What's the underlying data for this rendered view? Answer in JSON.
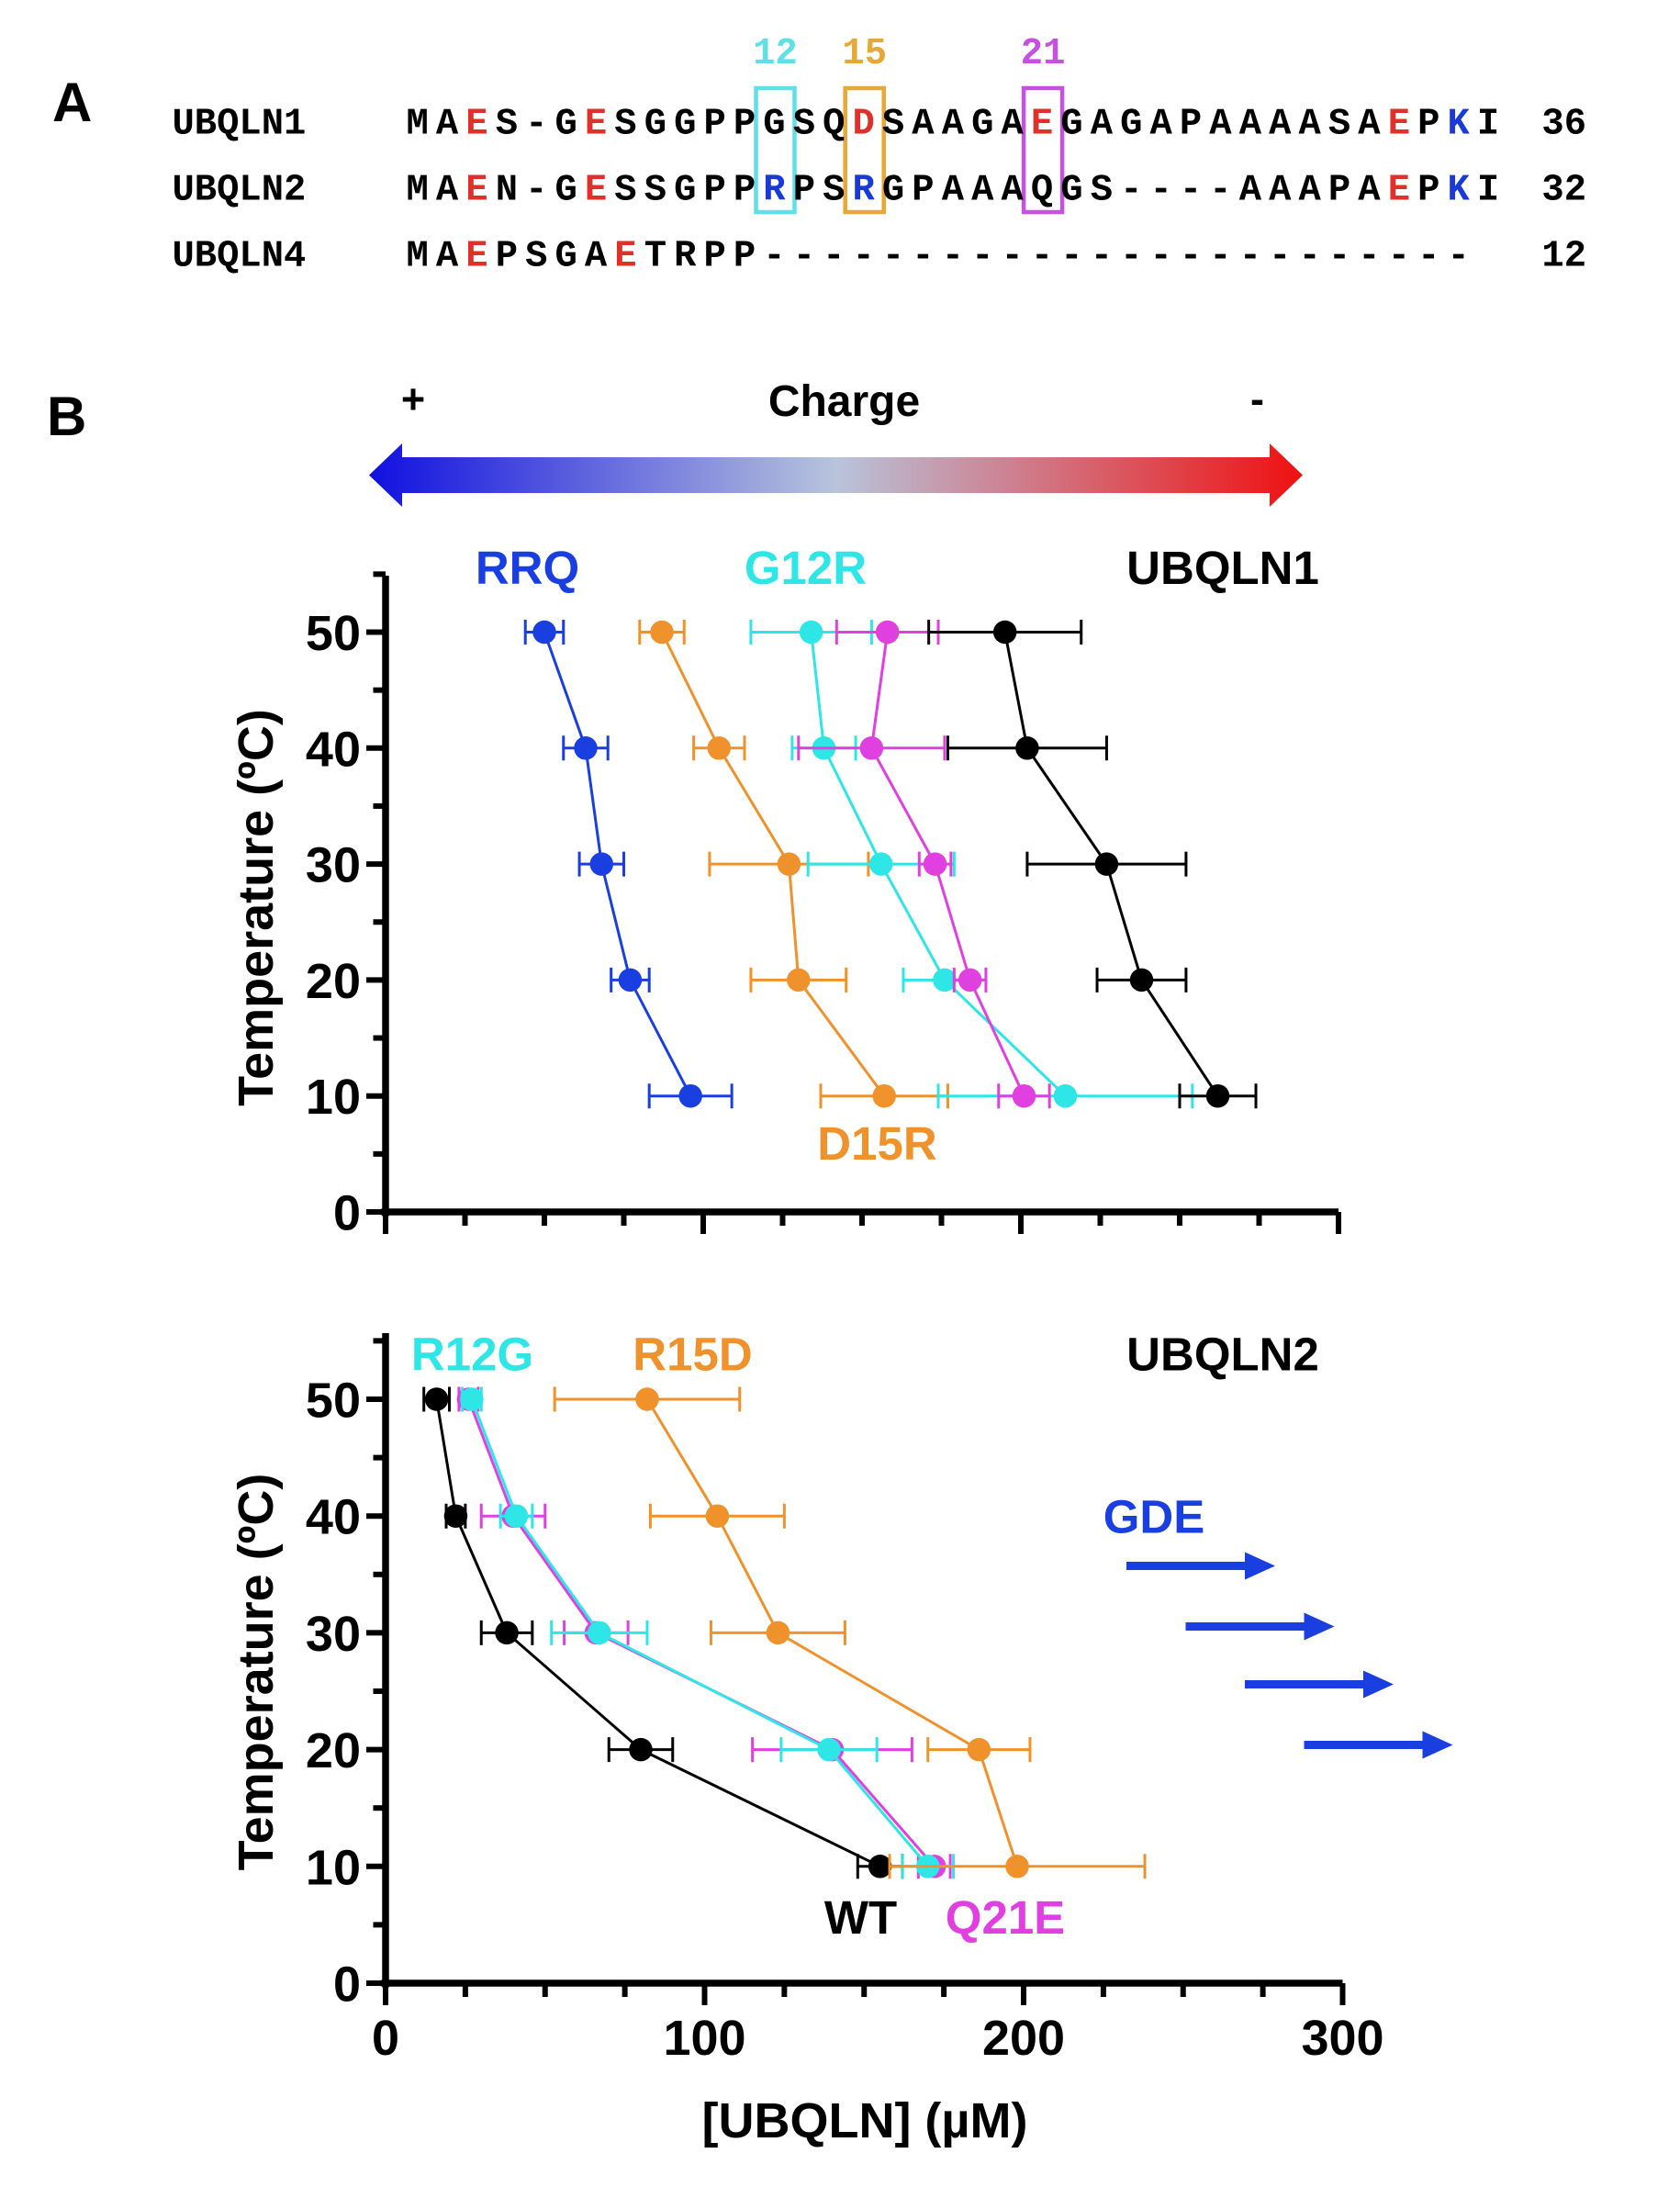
{
  "panel_a": {
    "label": "A",
    "column_markers": [
      {
        "text": "12",
        "index": 12,
        "color": "#5ee0e6"
      },
      {
        "text": "15",
        "index": 15,
        "color": "#e6a838"
      },
      {
        "text": "21",
        "index": 21,
        "color": "#c650e0"
      }
    ],
    "rows": [
      {
        "name": "UBQLN1",
        "sequence": "MAES-GESGGPPGSQDSAAGAEGAGAPAAAASAEPKI",
        "length": "36",
        "red": [
          2,
          6,
          15,
          21,
          33
        ],
        "blue": [
          35
        ]
      },
      {
        "name": "UBQLN2",
        "sequence": "MAEN-GESSGPPRPSRGPAAAQGS----AAAPAEPKI",
        "length": "32",
        "red": [
          2,
          6,
          33
        ],
        "blue": [
          12,
          15,
          35
        ]
      },
      {
        "name": "UBQLN4",
        "sequence": "MAEPSGAETRPP------------------------",
        "length": "12",
        "red": [
          2,
          7
        ],
        "blue": []
      }
    ],
    "colors": {
      "red": "#e0302a",
      "blue": "#1a3ad8"
    }
  },
  "panel_b": {
    "label": "B",
    "charge": {
      "title": "Charge",
      "plus": "+",
      "minus": "-",
      "gradient": [
        "#1010e0",
        "#b8c4dc",
        "#f01010"
      ]
    },
    "gde_label": "GDE"
  },
  "chart_data": [
    {
      "type": "line",
      "title": "UBQLN1",
      "xlabel": "",
      "ylabel": "Temperature (ºC)",
      "xlim": [
        0,
        300
      ],
      "ylim": [
        0,
        55
      ],
      "yticks": [
        "0",
        "10",
        "20",
        "30",
        "40",
        "50"
      ],
      "xticks": [],
      "y": [
        50,
        40,
        30,
        20,
        10
      ],
      "series": [
        {
          "name": "RRQ",
          "color": "#1a3fe0",
          "x": [
            50,
            63,
            68,
            77,
            96
          ],
          "err": [
            6,
            7,
            7,
            6,
            13
          ]
        },
        {
          "name": "D15R",
          "color": "#f0922b",
          "x": [
            87,
            105,
            127,
            130,
            157
          ],
          "err": [
            7,
            8,
            25,
            15,
            20
          ]
        },
        {
          "name": "G12R",
          "color": "#2ee6e6",
          "x": [
            134,
            138,
            156,
            176,
            214
          ],
          "err": [
            19,
            10,
            23,
            13,
            40
          ]
        },
        {
          "name": "",
          "color": "#e040e0",
          "x": [
            158,
            153,
            173,
            184,
            201
          ],
          "err": [
            16,
            23,
            5,
            5,
            8
          ]
        },
        {
          "name": "UBQLN1",
          "color": "#000000",
          "x": [
            195,
            202,
            227,
            238,
            262
          ],
          "err": [
            24,
            25,
            25,
            14,
            12
          ]
        }
      ]
    },
    {
      "type": "line",
      "title": "UBQLN2",
      "xlabel": "[UBQLN] (µM)",
      "ylabel": "Temperature (ºC)",
      "xlim": [
        0,
        300
      ],
      "ylim": [
        0,
        55
      ],
      "yticks": [
        "0",
        "10",
        "20",
        "30",
        "40",
        "50"
      ],
      "xticks": [
        "0",
        "100",
        "200",
        "300"
      ],
      "y": [
        50,
        40,
        30,
        20,
        10
      ],
      "series": [
        {
          "name": "WT",
          "color": "#000000",
          "x": [
            16,
            22,
            38,
            80,
            155
          ],
          "err": [
            4,
            3,
            8,
            10,
            7
          ]
        },
        {
          "name": "Q21E",
          "color": "#e040e0",
          "x": [
            26,
            40,
            66,
            140,
            172
          ],
          "err": [
            3,
            10,
            10,
            25,
            5
          ]
        },
        {
          "name": "R12G",
          "color": "#2ee6e6",
          "x": [
            27,
            41,
            67,
            139,
            170
          ],
          "err": [
            3,
            5,
            15,
            15,
            8
          ]
        },
        {
          "name": "R15D",
          "color": "#f0922b",
          "x": [
            82,
            104,
            123,
            186,
            198
          ],
          "err": [
            29,
            21,
            21,
            16,
            40
          ]
        }
      ]
    }
  ]
}
